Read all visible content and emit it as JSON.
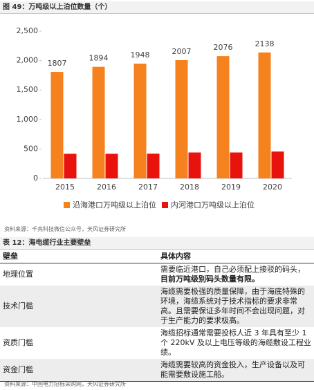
{
  "figure_title": "图 49：万吨级以上泊位数量（个）",
  "chart_data": {
    "type": "bar",
    "categories": [
      "2015",
      "2016",
      "2017",
      "2018",
      "2019",
      "2020"
    ],
    "series": [
      {
        "name": "沿海港口万吨级以上泊位",
        "color": "#f5821f",
        "values": [
          1807,
          1894,
          1948,
          2007,
          2076,
          2138
        ],
        "show_labels": true
      },
      {
        "name": "内河港口万吨级以上泊位",
        "color": "#e8130d",
        "values": [
          418,
          418,
          420,
          440,
          440,
          456
        ],
        "show_labels": false
      }
    ],
    "ylim": [
      0,
      2500
    ],
    "yticks": [
      0,
      500,
      {
        "value": 1000,
        "label": "1,000"
      },
      {
        "value": 1500,
        "label": "1,500"
      },
      {
        "value": 2000,
        "label": "2,000"
      },
      {
        "value": 2500,
        "label": "2,500"
      }
    ],
    "legend": "bottom"
  },
  "figure_source": "资料来源：千亮科技微信公众号，天风证券研究所",
  "table": {
    "title": "表 12：海电缆行业主要壁垒",
    "header": [
      "壁垒",
      "具体内容"
    ],
    "rows": [
      {
        "label": "地理位置",
        "content": "需要临近港口，自己必须配上接驳的码头，",
        "emphasis": "目前万吨级别码头数量有限。"
      },
      {
        "label": "技术门槛",
        "content": "海缆需要极强的质量保障，由于海底特殊的环境，海缆系统对于技术指标的要求非常高。且需要保证多年时间不会出现问题，对于生产能力的要求极高。"
      },
      {
        "label": "资质门槛",
        "content": "海缆招标通常需要投标人近 3 年具有至少 1 个 220kV 及以上电压等级的海缆敷设工程业绩。"
      },
      {
        "label": "资金门槛",
        "content": "海缆需要较高的资金投入，生产设备以及可能需要敷设施工船。"
      }
    ]
  },
  "table_source": "资料来源：中国电力招标采购网，天风证券研究所"
}
